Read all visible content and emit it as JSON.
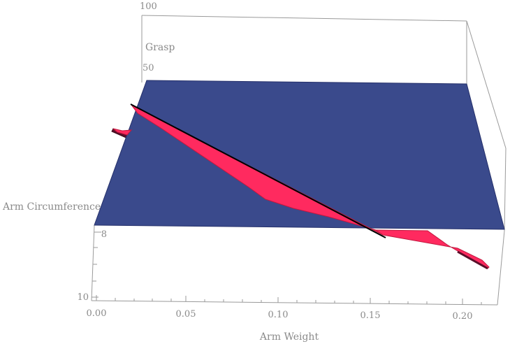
{
  "chart_data": {
    "type": "surface3d",
    "xlabel": "Arm Weight",
    "ylabel": "Arm Circumference",
    "zlabel": "Grasp",
    "x_ticks": [
      "0.00",
      "0.05",
      "0.10",
      "0.15",
      "0.20"
    ],
    "y_ticks": [
      "8",
      "10"
    ],
    "z_ticks": [
      "50",
      "100"
    ],
    "surfaces": [
      {
        "name": "plane",
        "color": "#3a4a8c",
        "z_constant": 50
      },
      {
        "name": "ribbon",
        "color": "#ff2a5f",
        "edge_color": "#5a0f2a"
      }
    ],
    "line": {
      "color": "#000000"
    }
  }
}
